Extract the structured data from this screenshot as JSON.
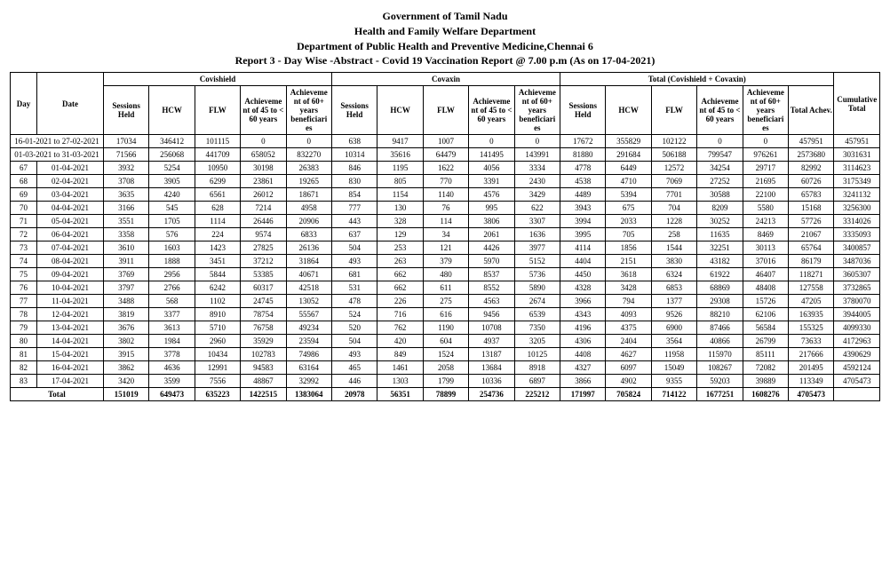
{
  "header": {
    "line1": "Government of Tamil Nadu",
    "line2": "Health and Family Welfare Department",
    "line3": "Department of Public Health and Preventive Medicine,Chennai 6",
    "line4": "Report 3 - Day Wise -Abstract - Covid 19 Vaccination Report @ 7.00 p.m (As on 17-04-2021)"
  },
  "group_labels": {
    "covishield": "Covishield",
    "covaxin": "Covaxin",
    "total": "Total (Covishield + Covaxin)"
  },
  "col_labels": {
    "day": "Day",
    "date": "Date",
    "sessions": "Sessions Held",
    "hcw": "HCW",
    "flw": "FLW",
    "ach45": "Achieveme nt of 45 to < 60 years",
    "ach60": "Achieveme nt of 60+ years beneficiari es",
    "total_achev": "Total Achev.",
    "cumulative": "Cumulative Total"
  },
  "range_rows": [
    {
      "date": "16-01-2021 to 27-02-2021",
      "cs_sess": "17034",
      "cs_hcw": "346412",
      "cs_flw": "101115",
      "cs_45": "0",
      "cs_60": "0",
      "cv_sess": "638",
      "cv_hcw": "9417",
      "cv_flw": "1007",
      "cv_45": "0",
      "cv_60": "0",
      "t_sess": "17672",
      "t_hcw": "355829",
      "t_flw": "102122",
      "t_45": "0",
      "t_60": "0",
      "t_ach": "457951",
      "cum": "457951"
    },
    {
      "date": "01-03-2021 to 31-03-2021",
      "cs_sess": "71566",
      "cs_hcw": "256068",
      "cs_flw": "441709",
      "cs_45": "658052",
      "cs_60": "832270",
      "cv_sess": "10314",
      "cv_hcw": "35616",
      "cv_flw": "64479",
      "cv_45": "141495",
      "cv_60": "143991",
      "t_sess": "81880",
      "t_hcw": "291684",
      "t_flw": "506188",
      "t_45": "799547",
      "t_60": "976261",
      "t_ach": "2573680",
      "cum": "3031631"
    }
  ],
  "rows": [
    {
      "day": "67",
      "date": "01-04-2021",
      "cs_sess": "3932",
      "cs_hcw": "5254",
      "cs_flw": "10950",
      "cs_45": "30198",
      "cs_60": "26383",
      "cv_sess": "846",
      "cv_hcw": "1195",
      "cv_flw": "1622",
      "cv_45": "4056",
      "cv_60": "3334",
      "t_sess": "4778",
      "t_hcw": "6449",
      "t_flw": "12572",
      "t_45": "34254",
      "t_60": "29717",
      "t_ach": "82992",
      "cum": "3114623"
    },
    {
      "day": "68",
      "date": "02-04-2021",
      "cs_sess": "3708",
      "cs_hcw": "3905",
      "cs_flw": "6299",
      "cs_45": "23861",
      "cs_60": "19265",
      "cv_sess": "830",
      "cv_hcw": "805",
      "cv_flw": "770",
      "cv_45": "3391",
      "cv_60": "2430",
      "t_sess": "4538",
      "t_hcw": "4710",
      "t_flw": "7069",
      "t_45": "27252",
      "t_60": "21695",
      "t_ach": "60726",
      "cum": "3175349"
    },
    {
      "day": "69",
      "date": "03-04-2021",
      "cs_sess": "3635",
      "cs_hcw": "4240",
      "cs_flw": "6561",
      "cs_45": "26012",
      "cs_60": "18671",
      "cv_sess": "854",
      "cv_hcw": "1154",
      "cv_flw": "1140",
      "cv_45": "4576",
      "cv_60": "3429",
      "t_sess": "4489",
      "t_hcw": "5394",
      "t_flw": "7701",
      "t_45": "30588",
      "t_60": "22100",
      "t_ach": "65783",
      "cum": "3241132"
    },
    {
      "day": "70",
      "date": "04-04-2021",
      "cs_sess": "3166",
      "cs_hcw": "545",
      "cs_flw": "628",
      "cs_45": "7214",
      "cs_60": "4958",
      "cv_sess": "777",
      "cv_hcw": "130",
      "cv_flw": "76",
      "cv_45": "995",
      "cv_60": "622",
      "t_sess": "3943",
      "t_hcw": "675",
      "t_flw": "704",
      "t_45": "8209",
      "t_60": "5580",
      "t_ach": "15168",
      "cum": "3256300"
    },
    {
      "day": "71",
      "date": "05-04-2021",
      "cs_sess": "3551",
      "cs_hcw": "1705",
      "cs_flw": "1114",
      "cs_45": "26446",
      "cs_60": "20906",
      "cv_sess": "443",
      "cv_hcw": "328",
      "cv_flw": "114",
      "cv_45": "3806",
      "cv_60": "3307",
      "t_sess": "3994",
      "t_hcw": "2033",
      "t_flw": "1228",
      "t_45": "30252",
      "t_60": "24213",
      "t_ach": "57726",
      "cum": "3314026"
    },
    {
      "day": "72",
      "date": "06-04-2021",
      "cs_sess": "3358",
      "cs_hcw": "576",
      "cs_flw": "224",
      "cs_45": "9574",
      "cs_60": "6833",
      "cv_sess": "637",
      "cv_hcw": "129",
      "cv_flw": "34",
      "cv_45": "2061",
      "cv_60": "1636",
      "t_sess": "3995",
      "t_hcw": "705",
      "t_flw": "258",
      "t_45": "11635",
      "t_60": "8469",
      "t_ach": "21067",
      "cum": "3335093"
    },
    {
      "day": "73",
      "date": "07-04-2021",
      "cs_sess": "3610",
      "cs_hcw": "1603",
      "cs_flw": "1423",
      "cs_45": "27825",
      "cs_60": "26136",
      "cv_sess": "504",
      "cv_hcw": "253",
      "cv_flw": "121",
      "cv_45": "4426",
      "cv_60": "3977",
      "t_sess": "4114",
      "t_hcw": "1856",
      "t_flw": "1544",
      "t_45": "32251",
      "t_60": "30113",
      "t_ach": "65764",
      "cum": "3400857"
    },
    {
      "day": "74",
      "date": "08-04-2021",
      "cs_sess": "3911",
      "cs_hcw": "1888",
      "cs_flw": "3451",
      "cs_45": "37212",
      "cs_60": "31864",
      "cv_sess": "493",
      "cv_hcw": "263",
      "cv_flw": "379",
      "cv_45": "5970",
      "cv_60": "5152",
      "t_sess": "4404",
      "t_hcw": "2151",
      "t_flw": "3830",
      "t_45": "43182",
      "t_60": "37016",
      "t_ach": "86179",
      "cum": "3487036"
    },
    {
      "day": "75",
      "date": "09-04-2021",
      "cs_sess": "3769",
      "cs_hcw": "2956",
      "cs_flw": "5844",
      "cs_45": "53385",
      "cs_60": "40671",
      "cv_sess": "681",
      "cv_hcw": "662",
      "cv_flw": "480",
      "cv_45": "8537",
      "cv_60": "5736",
      "t_sess": "4450",
      "t_hcw": "3618",
      "t_flw": "6324",
      "t_45": "61922",
      "t_60": "46407",
      "t_ach": "118271",
      "cum": "3605307"
    },
    {
      "day": "76",
      "date": "10-04-2021",
      "cs_sess": "3797",
      "cs_hcw": "2766",
      "cs_flw": "6242",
      "cs_45": "60317",
      "cs_60": "42518",
      "cv_sess": "531",
      "cv_hcw": "662",
      "cv_flw": "611",
      "cv_45": "8552",
      "cv_60": "5890",
      "t_sess": "4328",
      "t_hcw": "3428",
      "t_flw": "6853",
      "t_45": "68869",
      "t_60": "48408",
      "t_ach": "127558",
      "cum": "3732865"
    },
    {
      "day": "77",
      "date": "11-04-2021",
      "cs_sess": "3488",
      "cs_hcw": "568",
      "cs_flw": "1102",
      "cs_45": "24745",
      "cs_60": "13052",
      "cv_sess": "478",
      "cv_hcw": "226",
      "cv_flw": "275",
      "cv_45": "4563",
      "cv_60": "2674",
      "t_sess": "3966",
      "t_hcw": "794",
      "t_flw": "1377",
      "t_45": "29308",
      "t_60": "15726",
      "t_ach": "47205",
      "cum": "3780070"
    },
    {
      "day": "78",
      "date": "12-04-2021",
      "cs_sess": "3819",
      "cs_hcw": "3377",
      "cs_flw": "8910",
      "cs_45": "78754",
      "cs_60": "55567",
      "cv_sess": "524",
      "cv_hcw": "716",
      "cv_flw": "616",
      "cv_45": "9456",
      "cv_60": "6539",
      "t_sess": "4343",
      "t_hcw": "4093",
      "t_flw": "9526",
      "t_45": "88210",
      "t_60": "62106",
      "t_ach": "163935",
      "cum": "3944005"
    },
    {
      "day": "79",
      "date": "13-04-2021",
      "cs_sess": "3676",
      "cs_hcw": "3613",
      "cs_flw": "5710",
      "cs_45": "76758",
      "cs_60": "49234",
      "cv_sess": "520",
      "cv_hcw": "762",
      "cv_flw": "1190",
      "cv_45": "10708",
      "cv_60": "7350",
      "t_sess": "4196",
      "t_hcw": "4375",
      "t_flw": "6900",
      "t_45": "87466",
      "t_60": "56584",
      "t_ach": "155325",
      "cum": "4099330"
    },
    {
      "day": "80",
      "date": "14-04-2021",
      "cs_sess": "3802",
      "cs_hcw": "1984",
      "cs_flw": "2960",
      "cs_45": "35929",
      "cs_60": "23594",
      "cv_sess": "504",
      "cv_hcw": "420",
      "cv_flw": "604",
      "cv_45": "4937",
      "cv_60": "3205",
      "t_sess": "4306",
      "t_hcw": "2404",
      "t_flw": "3564",
      "t_45": "40866",
      "t_60": "26799",
      "t_ach": "73633",
      "cum": "4172963"
    },
    {
      "day": "81",
      "date": "15-04-2021",
      "cs_sess": "3915",
      "cs_hcw": "3778",
      "cs_flw": "10434",
      "cs_45": "102783",
      "cs_60": "74986",
      "cv_sess": "493",
      "cv_hcw": "849",
      "cv_flw": "1524",
      "cv_45": "13187",
      "cv_60": "10125",
      "t_sess": "4408",
      "t_hcw": "4627",
      "t_flw": "11958",
      "t_45": "115970",
      "t_60": "85111",
      "t_ach": "217666",
      "cum": "4390629"
    },
    {
      "day": "82",
      "date": "16-04-2021",
      "cs_sess": "3862",
      "cs_hcw": "4636",
      "cs_flw": "12991",
      "cs_45": "94583",
      "cs_60": "63164",
      "cv_sess": "465",
      "cv_hcw": "1461",
      "cv_flw": "2058",
      "cv_45": "13684",
      "cv_60": "8918",
      "t_sess": "4327",
      "t_hcw": "6097",
      "t_flw": "15049",
      "t_45": "108267",
      "t_60": "72082",
      "t_ach": "201495",
      "cum": "4592124"
    },
    {
      "day": "83",
      "date": "17-04-2021",
      "cs_sess": "3420",
      "cs_hcw": "3599",
      "cs_flw": "7556",
      "cs_45": "48867",
      "cs_60": "32992",
      "cv_sess": "446",
      "cv_hcw": "1303",
      "cv_flw": "1799",
      "cv_45": "10336",
      "cv_60": "6897",
      "t_sess": "3866",
      "t_hcw": "4902",
      "t_flw": "9355",
      "t_45": "59203",
      "t_60": "39889",
      "t_ach": "113349",
      "cum": "4705473"
    }
  ],
  "total_row": {
    "label": "Total",
    "cs_sess": "151019",
    "cs_hcw": "649473",
    "cs_flw": "635223",
    "cs_45": "1422515",
    "cs_60": "1383064",
    "cv_sess": "20978",
    "cv_hcw": "56351",
    "cv_flw": "78899",
    "cv_45": "254736",
    "cv_60": "225212",
    "t_sess": "171997",
    "t_hcw": "705824",
    "t_flw": "714122",
    "t_45": "1677251",
    "t_60": "1608276",
    "t_ach": "4705473"
  }
}
